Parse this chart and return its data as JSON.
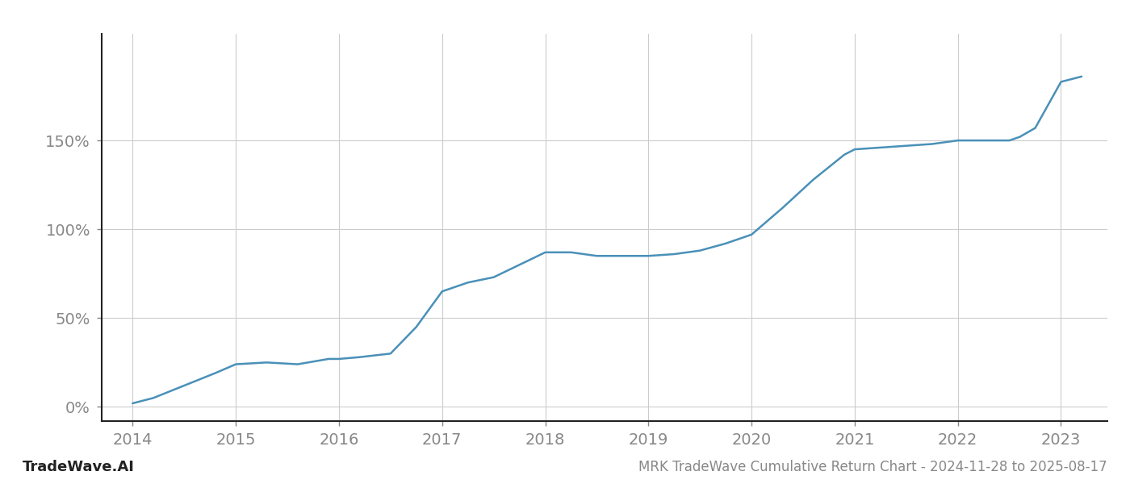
{
  "x_values": [
    2014.0,
    2014.2,
    2014.5,
    2014.8,
    2015.0,
    2015.3,
    2015.6,
    2015.9,
    2016.0,
    2016.2,
    2016.5,
    2016.75,
    2017.0,
    2017.25,
    2017.5,
    2017.75,
    2018.0,
    2018.25,
    2018.5,
    2018.75,
    2019.0,
    2019.25,
    2019.5,
    2019.75,
    2020.0,
    2020.3,
    2020.6,
    2020.9,
    2021.0,
    2021.25,
    2021.5,
    2021.75,
    2022.0,
    2022.25,
    2022.5,
    2022.6,
    2022.75,
    2023.0,
    2023.2
  ],
  "y_values": [
    2,
    5,
    12,
    19,
    24,
    25,
    24,
    27,
    27,
    28,
    30,
    45,
    65,
    70,
    73,
    80,
    87,
    87,
    85,
    85,
    85,
    86,
    88,
    92,
    97,
    112,
    128,
    142,
    145,
    146,
    147,
    148,
    150,
    150,
    150,
    152,
    157,
    183,
    186
  ],
  "line_color": "#4a90b8",
  "line_width": 1.8,
  "title": "MRK TradeWave Cumulative Return Chart - 2024-11-28 to 2025-08-17",
  "watermark": "TradeWave.AI",
  "yticks": [
    0,
    50,
    100,
    150
  ],
  "xticks": [
    2014,
    2015,
    2016,
    2017,
    2018,
    2019,
    2020,
    2021,
    2022,
    2023
  ],
  "xlim": [
    2013.7,
    2023.45
  ],
  "ylim": [
    -8,
    210
  ],
  "bg_color": "#ffffff",
  "grid_color": "#cccccc",
  "axis_color": "#222222",
  "tick_color": "#888888",
  "title_fontsize": 12,
  "watermark_fontsize": 13,
  "tick_labelsize": 14
}
